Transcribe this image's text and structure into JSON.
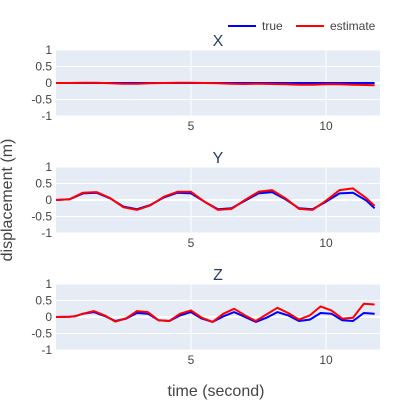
{
  "chart_data": {
    "type": "line",
    "xlabel": "time (second)",
    "ylabel": "displacement (m)",
    "xlim": [
      0,
      12
    ],
    "ylim": [
      -1,
      1
    ],
    "x_ticks": [
      5,
      10
    ],
    "y_ticks": [
      1,
      0.5,
      0,
      -0.5,
      -1
    ],
    "grid": true,
    "legend_position": "top-right",
    "colors": {
      "plot_bg": "#e5ecf6",
      "grid": "#ffffff"
    },
    "legend": [
      {
        "name": "true",
        "color": "#0000ff"
      },
      {
        "name": "estimate",
        "color": "#ff0000"
      }
    ],
    "subplots": [
      {
        "title": "X",
        "x": [
          0,
          0.5,
          1,
          1.5,
          2,
          2.5,
          3,
          3.5,
          4,
          4.5,
          5,
          5.5,
          6,
          6.5,
          7,
          7.5,
          8,
          8.5,
          9,
          9.5,
          10,
          10.5,
          11,
          11.5,
          11.8
        ],
        "series": [
          {
            "name": "true",
            "color": "#0000ff",
            "values": [
              0,
              0,
              0,
              0,
              0,
              0,
              0,
              0,
              0,
              0,
              0,
              0,
              0,
              0,
              0,
              0,
              0,
              0,
              0,
              0,
              0,
              0,
              0,
              0,
              0
            ]
          },
          {
            "name": "estimate",
            "color": "#ff0000",
            "values": [
              0,
              0,
              0.01,
              0.01,
              -0.01,
              -0.02,
              -0.02,
              -0.01,
              0,
              0.01,
              0.01,
              0,
              -0.01,
              -0.02,
              -0.03,
              -0.02,
              -0.03,
              -0.04,
              -0.05,
              -0.05,
              -0.04,
              -0.04,
              -0.05,
              -0.06,
              -0.07
            ]
          }
        ]
      },
      {
        "title": "Y",
        "x": [
          0,
          0.5,
          1,
          1.5,
          2,
          2.5,
          3,
          3.5,
          4,
          4.5,
          5,
          5.5,
          6,
          6.5,
          7,
          7.5,
          8,
          8.5,
          9,
          9.5,
          10,
          10.5,
          11,
          11.5,
          11.8
        ],
        "series": [
          {
            "name": "true",
            "color": "#0000ff",
            "values": [
              0,
              0.02,
              0.2,
              0.22,
              0.05,
              -0.2,
              -0.28,
              -0.15,
              0.08,
              0.22,
              0.2,
              -0.05,
              -0.28,
              -0.25,
              -0.02,
              0.2,
              0.24,
              0.02,
              -0.25,
              -0.28,
              -0.05,
              0.2,
              0.22,
              -0.02,
              -0.25
            ]
          },
          {
            "name": "estimate",
            "color": "#ff0000",
            "values": [
              0,
              0.02,
              0.22,
              0.24,
              0.06,
              -0.22,
              -0.3,
              -0.16,
              0.1,
              0.25,
              0.25,
              -0.05,
              -0.3,
              -0.27,
              0.0,
              0.25,
              0.3,
              0.05,
              -0.27,
              -0.3,
              -0.02,
              0.3,
              0.35,
              0.05,
              -0.18
            ]
          }
        ]
      },
      {
        "title": "Z",
        "x": [
          0,
          0.5,
          0.7,
          1,
          1.4,
          1.8,
          2.2,
          2.6,
          3.0,
          3.4,
          3.8,
          4.2,
          4.6,
          5.0,
          5.4,
          5.8,
          6.2,
          6.6,
          7.0,
          7.4,
          7.8,
          8.2,
          8.6,
          9.0,
          9.4,
          9.8,
          10.2,
          10.6,
          11.0,
          11.4,
          11.8
        ],
        "series": [
          {
            "name": "true",
            "color": "#0000ff",
            "values": [
              0,
              0.01,
              0.02,
              0.1,
              0.15,
              0.03,
              -0.12,
              -0.05,
              0.12,
              0.1,
              -0.1,
              -0.12,
              0.05,
              0.15,
              -0.05,
              -0.15,
              0.02,
              0.15,
              0.0,
              -0.15,
              -0.02,
              0.15,
              0.05,
              -0.12,
              -0.08,
              0.12,
              0.1,
              -0.1,
              -0.12,
              0.12,
              0.1
            ]
          },
          {
            "name": "estimate",
            "color": "#ff0000",
            "values": [
              0,
              0.01,
              0.02,
              0.1,
              0.18,
              0.05,
              -0.14,
              -0.04,
              0.18,
              0.15,
              -0.1,
              -0.12,
              0.1,
              0.2,
              -0.02,
              -0.15,
              0.1,
              0.25,
              0.05,
              -0.12,
              0.08,
              0.28,
              0.12,
              -0.08,
              0.05,
              0.32,
              0.2,
              -0.05,
              -0.02,
              0.4,
              0.38
            ]
          }
        ]
      }
    ]
  }
}
